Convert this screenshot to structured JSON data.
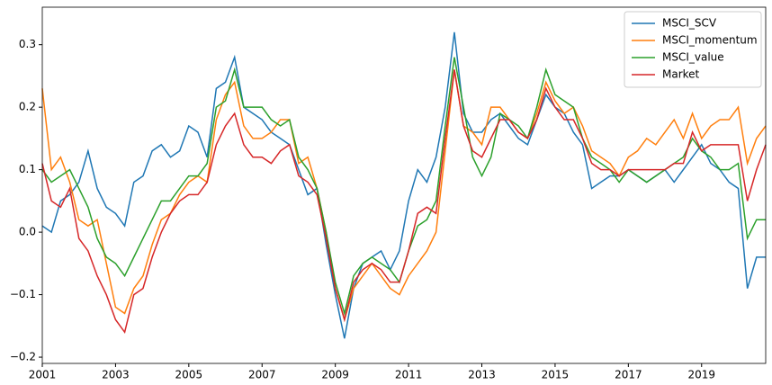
{
  "chart_data": {
    "type": "line",
    "x": [
      2001,
      2001.25,
      2001.5,
      2001.75,
      2002,
      2002.25,
      2002.5,
      2002.75,
      2003,
      2003.25,
      2003.5,
      2003.75,
      2004,
      2004.25,
      2004.5,
      2004.75,
      2005,
      2005.25,
      2005.5,
      2005.75,
      2006,
      2006.25,
      2006.5,
      2006.75,
      2007,
      2007.25,
      2007.5,
      2007.75,
      2008,
      2008.25,
      2008.5,
      2008.75,
      2009,
      2009.25,
      2009.5,
      2009.75,
      2010,
      2010.25,
      2010.5,
      2010.75,
      2011,
      2011.25,
      2011.5,
      2011.75,
      2012,
      2012.25,
      2012.5,
      2012.75,
      2013,
      2013.25,
      2013.5,
      2013.75,
      2014,
      2014.25,
      2014.5,
      2014.75,
      2015,
      2015.25,
      2015.5,
      2015.75,
      2016,
      2016.25,
      2016.5,
      2016.75,
      2017,
      2017.25,
      2017.5,
      2017.75,
      2018,
      2018.25,
      2018.5,
      2018.75,
      2019,
      2019.25,
      2019.5,
      2019.75,
      2020,
      2020.25,
      2020.5,
      2020.75
    ],
    "series": [
      {
        "name": "MSCI_SCV",
        "color": "#1f77b4",
        "values": [
          0.01,
          0.0,
          0.05,
          0.06,
          0.08,
          0.13,
          0.07,
          0.04,
          0.03,
          0.01,
          0.08,
          0.09,
          0.13,
          0.14,
          0.12,
          0.13,
          0.17,
          0.16,
          0.12,
          0.23,
          0.24,
          0.28,
          0.2,
          0.19,
          0.18,
          0.16,
          0.15,
          0.14,
          0.1,
          0.06,
          0.07,
          -0.02,
          -0.1,
          -0.17,
          -0.09,
          -0.05,
          -0.04,
          -0.03,
          -0.06,
          -0.03,
          0.05,
          0.1,
          0.08,
          0.12,
          0.2,
          0.32,
          0.19,
          0.16,
          0.16,
          0.18,
          0.19,
          0.17,
          0.15,
          0.14,
          0.18,
          0.22,
          0.2,
          0.19,
          0.16,
          0.14,
          0.07,
          0.08,
          0.09,
          0.09,
          0.1,
          0.09,
          0.08,
          0.09,
          0.1,
          0.08,
          0.1,
          0.12,
          0.14,
          0.11,
          0.1,
          0.08,
          0.07,
          -0.09,
          -0.04,
          -0.04
        ]
      },
      {
        "name": "MSCI_momentum",
        "color": "#ff7f0e",
        "values": [
          0.23,
          0.1,
          0.12,
          0.08,
          0.02,
          0.01,
          0.02,
          -0.05,
          -0.12,
          -0.13,
          -0.09,
          -0.07,
          -0.02,
          0.02,
          0.03,
          0.06,
          0.08,
          0.09,
          0.08,
          0.18,
          0.22,
          0.24,
          0.17,
          0.15,
          0.15,
          0.16,
          0.18,
          0.18,
          0.11,
          0.12,
          0.07,
          0.0,
          -0.09,
          -0.14,
          -0.09,
          -0.07,
          -0.05,
          -0.07,
          -0.09,
          -0.1,
          -0.07,
          -0.05,
          -0.03,
          0.0,
          0.13,
          0.26,
          0.17,
          0.16,
          0.14,
          0.2,
          0.2,
          0.18,
          0.16,
          0.15,
          0.19,
          0.24,
          0.21,
          0.19,
          0.2,
          0.17,
          0.13,
          0.12,
          0.11,
          0.09,
          0.12,
          0.13,
          0.15,
          0.14,
          0.16,
          0.18,
          0.15,
          0.19,
          0.15,
          0.17,
          0.18,
          0.18,
          0.2,
          0.11,
          0.15,
          0.17
        ]
      },
      {
        "name": "MSCI_value",
        "color": "#2ca02c",
        "values": [
          0.1,
          0.08,
          0.09,
          0.1,
          0.07,
          0.04,
          -0.01,
          -0.04,
          -0.05,
          -0.07,
          -0.04,
          -0.01,
          0.02,
          0.05,
          0.05,
          0.07,
          0.09,
          0.09,
          0.11,
          0.2,
          0.21,
          0.26,
          0.2,
          0.2,
          0.2,
          0.18,
          0.17,
          0.18,
          0.12,
          0.1,
          0.07,
          0.0,
          -0.08,
          -0.13,
          -0.07,
          -0.05,
          -0.04,
          -0.05,
          -0.06,
          -0.08,
          -0.03,
          0.01,
          0.02,
          0.05,
          0.17,
          0.28,
          0.2,
          0.12,
          0.09,
          0.12,
          0.19,
          0.18,
          0.17,
          0.15,
          0.2,
          0.26,
          0.22,
          0.21,
          0.2,
          0.15,
          0.12,
          0.11,
          0.1,
          0.08,
          0.1,
          0.09,
          0.08,
          0.09,
          0.1,
          0.11,
          0.12,
          0.15,
          0.13,
          0.12,
          0.1,
          0.1,
          0.11,
          -0.01,
          0.02,
          0.02
        ]
      },
      {
        "name": "Market",
        "color": "#d62728",
        "values": [
          0.11,
          0.05,
          0.04,
          0.07,
          -0.01,
          -0.03,
          -0.07,
          -0.1,
          -0.14,
          -0.16,
          -0.1,
          -0.09,
          -0.04,
          0.0,
          0.03,
          0.05,
          0.06,
          0.06,
          0.08,
          0.14,
          0.17,
          0.19,
          0.14,
          0.12,
          0.12,
          0.11,
          0.13,
          0.14,
          0.09,
          0.08,
          0.06,
          -0.01,
          -0.09,
          -0.14,
          -0.08,
          -0.06,
          -0.05,
          -0.06,
          -0.08,
          -0.08,
          -0.03,
          0.03,
          0.04,
          0.03,
          0.15,
          0.26,
          0.17,
          0.13,
          0.12,
          0.15,
          0.18,
          0.18,
          0.16,
          0.15,
          0.18,
          0.23,
          0.2,
          0.18,
          0.18,
          0.15,
          0.11,
          0.1,
          0.1,
          0.09,
          0.1,
          0.1,
          0.1,
          0.1,
          0.1,
          0.11,
          0.11,
          0.16,
          0.13,
          0.14,
          0.14,
          0.14,
          0.14,
          0.05,
          0.1,
          0.14
        ]
      }
    ],
    "xlim": [
      2001,
      2020.75
    ],
    "xticks": [
      2001,
      2003,
      2005,
      2007,
      2009,
      2011,
      2013,
      2015,
      2017,
      2019
    ],
    "ylim": [
      -0.21,
      0.36
    ],
    "yticks": [
      {
        "value": -0.2,
        "label": "−0.2"
      },
      {
        "value": -0.1,
        "label": "−0.1"
      },
      {
        "value": 0,
        "label": "0.0"
      },
      0.1,
      0.2,
      0.3
    ],
    "grid": false,
    "legend": "upper right"
  }
}
